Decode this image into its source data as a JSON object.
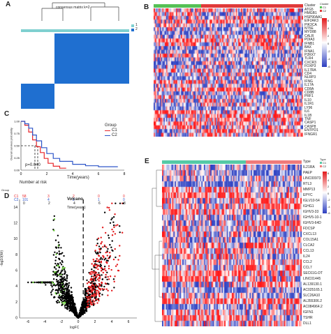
{
  "panels": {
    "a": "A",
    "b": "B",
    "c": "C",
    "d": "D",
    "e": "E"
  },
  "panel_a": {
    "title": "consensus matrix k=2",
    "legend": [
      "1",
      "2"
    ],
    "colors": {
      "c1": "#7fd0d0",
      "c2": "#1f6fd0",
      "bg": "#ffffff"
    }
  },
  "panel_b": {
    "cluster_label": "Cluster",
    "cluster_legend": [
      "C1",
      "C2"
    ],
    "scale": [
      "6",
      "4",
      "2",
      "0",
      "-2",
      "-4",
      "-6"
    ],
    "genes": [
      "ATG5",
      "HMGB1",
      "HSP90AA1",
      "EIF2AK3",
      "PIK3CA",
      "NT5E",
      "MYD88",
      "CALR",
      "PDIA3",
      "IFNB1",
      "BAX",
      "IFNA1",
      "P2RX7",
      "TLR4",
      "CXCR3",
      "FOXP3",
      "IL17RA",
      "CD4",
      "NLRP3",
      "IFNG",
      "IL17A",
      "CD8A",
      "CD8B",
      "PRF1",
      "IL10",
      "IL1R1",
      "LY96",
      "IL6",
      "IL1B",
      "TNF",
      "CASP1",
      "CASP8",
      "ENTPD1",
      "IFNGR1"
    ]
  },
  "panel_c": {
    "ylabel": "Overall survival probability",
    "xlabel": "Time(years)",
    "legend_title": "Group",
    "legend": [
      "C1",
      "C2"
    ],
    "pvalue": "p=0.040",
    "risk_title": "Number at risk",
    "risk_rows": [
      {
        "group": "C1",
        "values": [
          "58",
          "3",
          "2",
          "0",
          "0"
        ]
      },
      {
        "group": "C2",
        "values": [
          "101",
          "4",
          "2",
          "1",
          "0"
        ]
      }
    ],
    "risk_ylabel": "Group",
    "risk_xlabel": "Time(years)",
    "x_ticks": [
      "0",
      "2",
      "4",
      "6",
      "8"
    ],
    "y_ticks": [
      "0.00",
      "0.25",
      "0.50",
      "0.75",
      "1.00"
    ],
    "colors": {
      "c1": "#e8262b",
      "c2": "#2d55c8"
    },
    "chart_data": {
      "type": "line",
      "xlabel": "Time(years)",
      "ylabel": "Overall survival probability",
      "xlim": [
        0,
        8
      ],
      "ylim": [
        0,
        1
      ],
      "series": [
        {
          "name": "C1",
          "x": [
            0,
            0.3,
            0.6,
            0.9,
            1.2,
            1.5,
            1.8,
            2.1,
            2.5,
            3,
            3.5
          ],
          "y": [
            1,
            0.92,
            0.78,
            0.62,
            0.48,
            0.36,
            0.24,
            0.14,
            0.08,
            0.04,
            0.04
          ]
        },
        {
          "name": "C2",
          "x": [
            0,
            0.3,
            0.6,
            0.9,
            1.2,
            1.6,
            2,
            2.5,
            3,
            4,
            5,
            6,
            7.5
          ],
          "y": [
            1,
            0.95,
            0.86,
            0.72,
            0.6,
            0.46,
            0.34,
            0.24,
            0.18,
            0.12,
            0.09,
            0.07,
            0.07
          ]
        }
      ]
    }
  },
  "panel_d": {
    "title": "Volcano",
    "xlabel": "logFC",
    "ylabel": "-log10(fdr)",
    "x_ticks": [
      "-6",
      "-4",
      "-2",
      "0",
      "2",
      "4",
      "6"
    ],
    "y_ticks": [
      "0",
      "2",
      "4",
      "6",
      "8",
      "10",
      "12",
      "14"
    ],
    "colors": {
      "up": "#e31a1c",
      "down": "#66cc33",
      "ns": "#000000"
    }
  },
  "panel_e": {
    "type_label": "Type",
    "type_legend": [
      "C1",
      "C2"
    ],
    "scale": [
      "6",
      "4",
      "2",
      "0",
      "-2",
      "-4",
      "-6"
    ],
    "genes": [
      "IL21RA",
      "PAEP",
      "LINC00973",
      "RTL3",
      "MMP13",
      "EPYC",
      "IGLV10-54",
      "IGHG1",
      "IGHV3-33",
      "IGHV5-10-1",
      "IGHV3-64D",
      "FDCSP",
      "CXCL13",
      "COL15A1",
      "CLCA2",
      "CCL13",
      "IL24",
      "CCL2",
      "CCL7",
      "SEC61G-DT",
      "LINC01445",
      "AL139130.1",
      "AC025165.1",
      "SLC26A10",
      "AL355306.2",
      "AC084964.2",
      "IGFN1",
      "TSHR",
      "DLL1"
    ]
  }
}
